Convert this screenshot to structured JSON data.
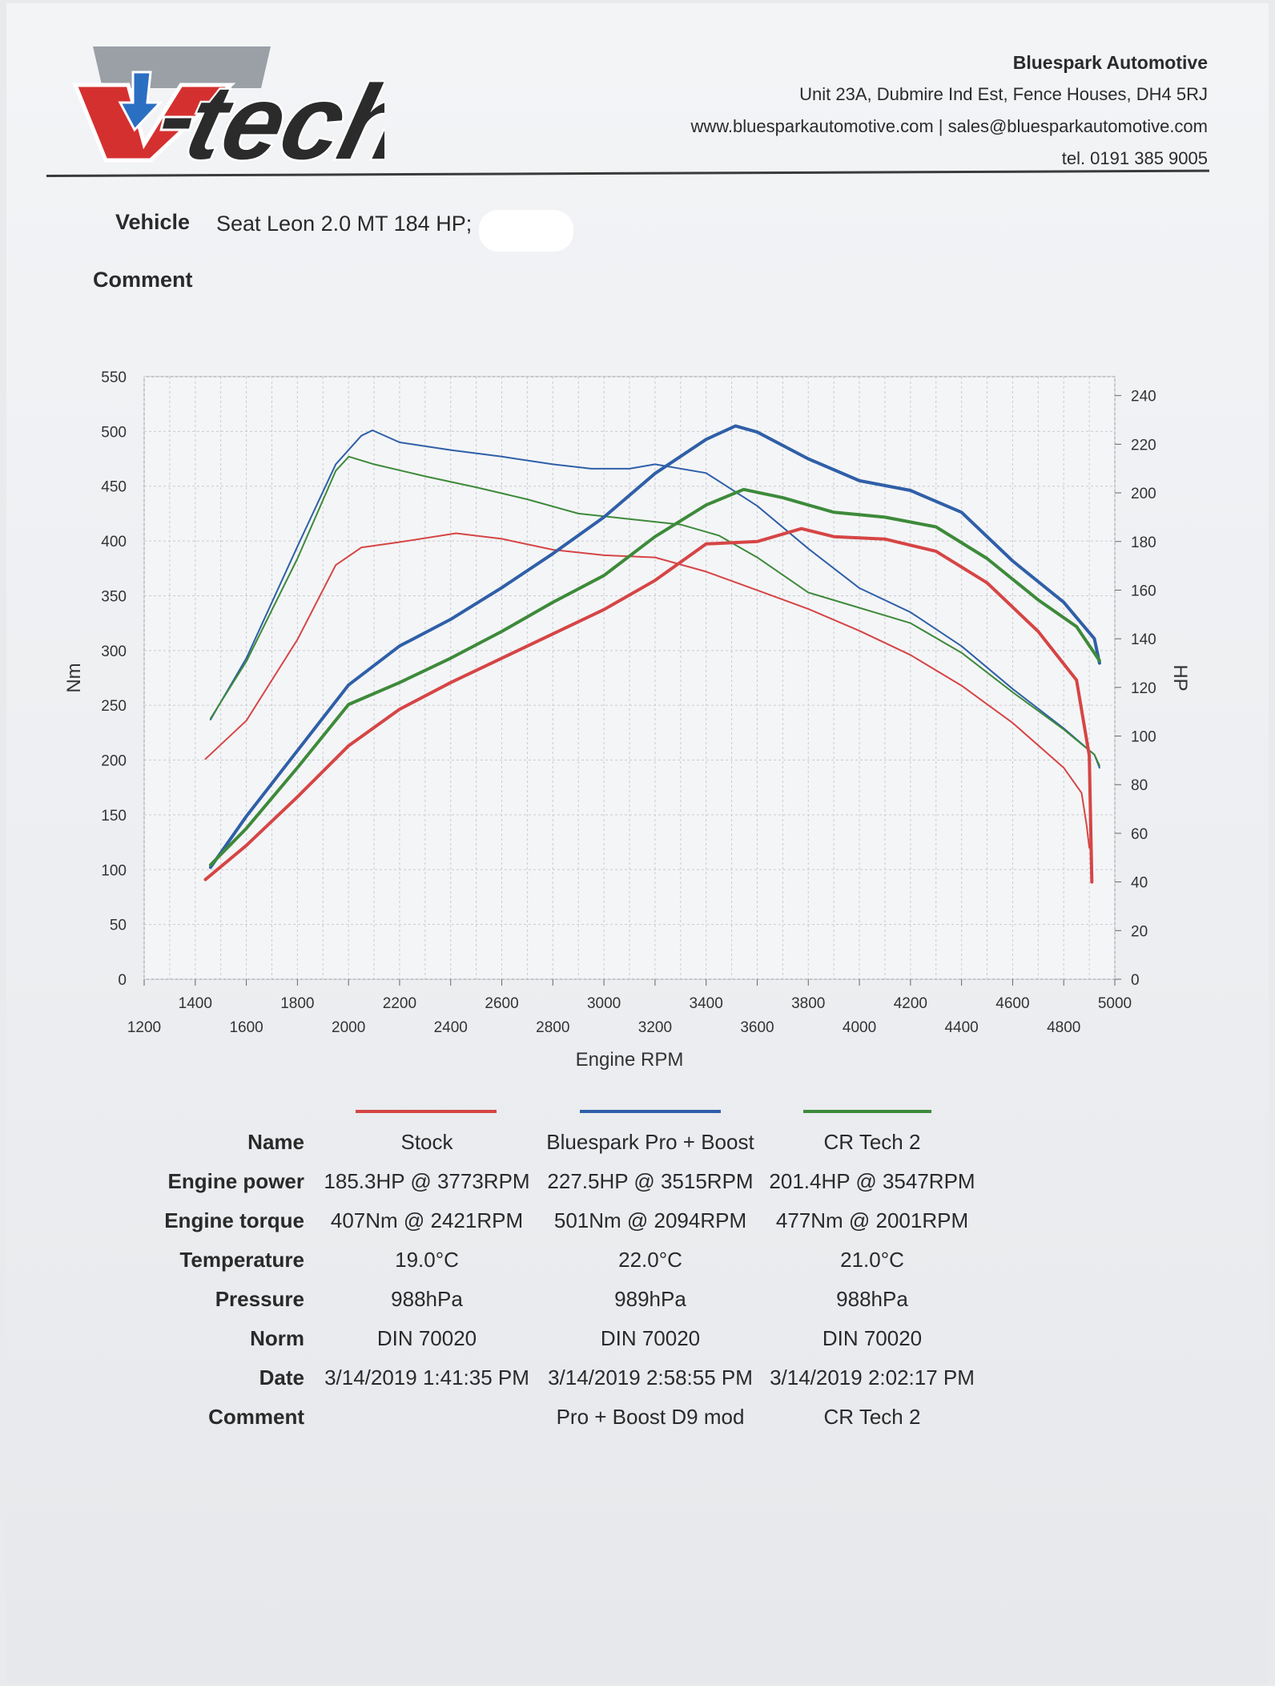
{
  "header": {
    "logo_text": "V-tech",
    "company_name": "Bluespark Automotive",
    "address": "Unit 23A, Dubmire Ind Est, Fence Houses, DH4 5RJ",
    "web_email": "www.bluesparkautomotive.com | sales@bluesparkautomotive.com",
    "phone": "tel. 0191 385 9005"
  },
  "meta": {
    "vehicle_label": "Vehicle",
    "vehicle_value": "Seat Leon 2.0 MT 184 HP;",
    "comment_label": "Comment",
    "comment_value": ""
  },
  "colors": {
    "stock": "#d64545",
    "bluespark": "#2f5fa8",
    "crtech": "#3d8a3a",
    "grid": "#c9cbcf"
  },
  "chart_data": {
    "type": "line",
    "xlabel": "Engine RPM",
    "ylabel_left": "Nm",
    "ylabel_right": "HP",
    "x_upper_ticks": [
      1400,
      1800,
      2200,
      2600,
      3000,
      3400,
      3800,
      4200,
      4600,
      5000
    ],
    "x_lower_ticks": [
      1200,
      1600,
      2000,
      2400,
      2800,
      3200,
      3600,
      4000,
      4400,
      4800
    ],
    "xlim": [
      1200,
      5000
    ],
    "y_left_ticks": [
      0,
      50,
      100,
      150,
      200,
      250,
      300,
      350,
      400,
      450,
      500,
      550
    ],
    "y_left_lim": [
      0,
      550
    ],
    "y_right_ticks": [
      0,
      20,
      40,
      60,
      80,
      100,
      120,
      140,
      160,
      180,
      200,
      220,
      240
    ],
    "y_right_lim": [
      0,
      247.8
    ],
    "grid": true,
    "series": [
      {
        "name": "Stock",
        "key": "stock",
        "quantity": "torque",
        "axis": "left",
        "x": [
          1440,
          1600,
          1800,
          1950,
          2050,
          2200,
          2421,
          2600,
          2800,
          3000,
          3200,
          3400,
          3600,
          3800,
          4000,
          4200,
          4400,
          4600,
          4800,
          4870,
          4890,
          4900
        ],
        "y": [
          201,
          236,
          310,
          378,
          394,
          399,
          407,
          402,
          392,
          387,
          385,
          372,
          355,
          338,
          318,
          296,
          268,
          234,
          193,
          170,
          140,
          120
        ]
      },
      {
        "name": "Bluespark Pro + Boost",
        "key": "bluespark",
        "quantity": "torque",
        "axis": "left",
        "x": [
          1460,
          1600,
          1800,
          1950,
          2050,
          2094,
          2200,
          2400,
          2600,
          2800,
          2950,
          3100,
          3200,
          3400,
          3600,
          3800,
          4000,
          4200,
          4400,
          4600,
          4800,
          4920,
          4940
        ],
        "y": [
          237,
          293,
          395,
          470,
          496,
          501,
          490,
          483,
          477,
          470,
          466,
          466,
          470,
          462,
          432,
          393,
          357,
          335,
          304,
          265,
          229,
          205,
          193
        ]
      },
      {
        "name": "CR Tech 2",
        "key": "crtech",
        "quantity": "torque",
        "axis": "left",
        "x": [
          1460,
          1600,
          1800,
          1950,
          2001,
          2100,
          2300,
          2500,
          2700,
          2900,
          3100,
          3300,
          3450,
          3600,
          3800,
          4000,
          4200,
          4400,
          4600,
          4800,
          4920,
          4940
        ],
        "y": [
          238,
          290,
          384,
          464,
          477,
          470,
          459,
          449,
          438,
          425,
          420,
          415,
          405,
          385,
          353,
          339,
          325,
          298,
          262,
          228,
          205,
          195
        ]
      },
      {
        "name": "Stock",
        "key": "stock",
        "quantity": "power",
        "axis": "right",
        "x": [
          1440,
          1600,
          1800,
          2000,
          2200,
          2400,
          2600,
          2800,
          3000,
          3200,
          3400,
          3600,
          3773,
          3900,
          4100,
          4300,
          4500,
          4700,
          4850,
          4900,
          4910
        ],
        "y": [
          41,
          55,
          75,
          96,
          111,
          122,
          132,
          142,
          152,
          164,
          179,
          180,
          185.3,
          182,
          181,
          176,
          163,
          143,
          123,
          92,
          40
        ]
      },
      {
        "name": "Bluespark Pro + Boost",
        "key": "bluespark",
        "quantity": "power",
        "axis": "right",
        "x": [
          1460,
          1600,
          1800,
          2000,
          2200,
          2400,
          2600,
          2800,
          3000,
          3200,
          3400,
          3515,
          3600,
          3800,
          4000,
          4200,
          4400,
          4600,
          4800,
          4920,
          4940
        ],
        "y": [
          46,
          67,
          94,
          121,
          137,
          148,
          161,
          175,
          190,
          208,
          222,
          227.5,
          225,
          214,
          205,
          201,
          192,
          172,
          155,
          140,
          130
        ]
      },
      {
        "name": "CR Tech 2",
        "key": "crtech",
        "quantity": "power",
        "axis": "right",
        "x": [
          1460,
          1600,
          1800,
          2000,
          2200,
          2400,
          2600,
          2800,
          3000,
          3200,
          3400,
          3547,
          3700,
          3900,
          4100,
          4300,
          4500,
          4700,
          4850,
          4940
        ],
        "y": [
          47,
          62,
          87,
          113,
          122,
          132,
          143,
          155,
          166,
          182,
          195,
          201.4,
          198,
          192,
          190,
          186,
          173,
          156,
          145,
          131
        ]
      }
    ]
  },
  "results": {
    "row_labels": [
      "Name",
      "Engine power",
      "Engine torque",
      "Temperature",
      "Pressure",
      "Norm",
      "Date",
      "Comment"
    ],
    "columns": [
      {
        "key": "stock",
        "cells": [
          "Stock",
          "185.3HP @  3773RPM",
          "407Nm @ 2421RPM",
          "19.0°C",
          "988hPa",
          "DIN 70020",
          "3/14/2019 1:41:35 PM",
          ""
        ]
      },
      {
        "key": "bluespark",
        "cells": [
          "Bluespark Pro + Boost",
          "227.5HP @  3515RPM",
          "501Nm @ 2094RPM",
          "22.0°C",
          "989hPa",
          "DIN 70020",
          "3/14/2019 2:58:55 PM",
          "Pro + Boost D9 mod"
        ]
      },
      {
        "key": "crtech",
        "cells": [
          "CR Tech 2",
          "201.4HP @  3547RPM",
          "477Nm @ 2001RPM",
          "21.0°C",
          "988hPa",
          "DIN 70020",
          "3/14/2019 2:02:17 PM",
          "CR Tech 2"
        ]
      }
    ]
  }
}
